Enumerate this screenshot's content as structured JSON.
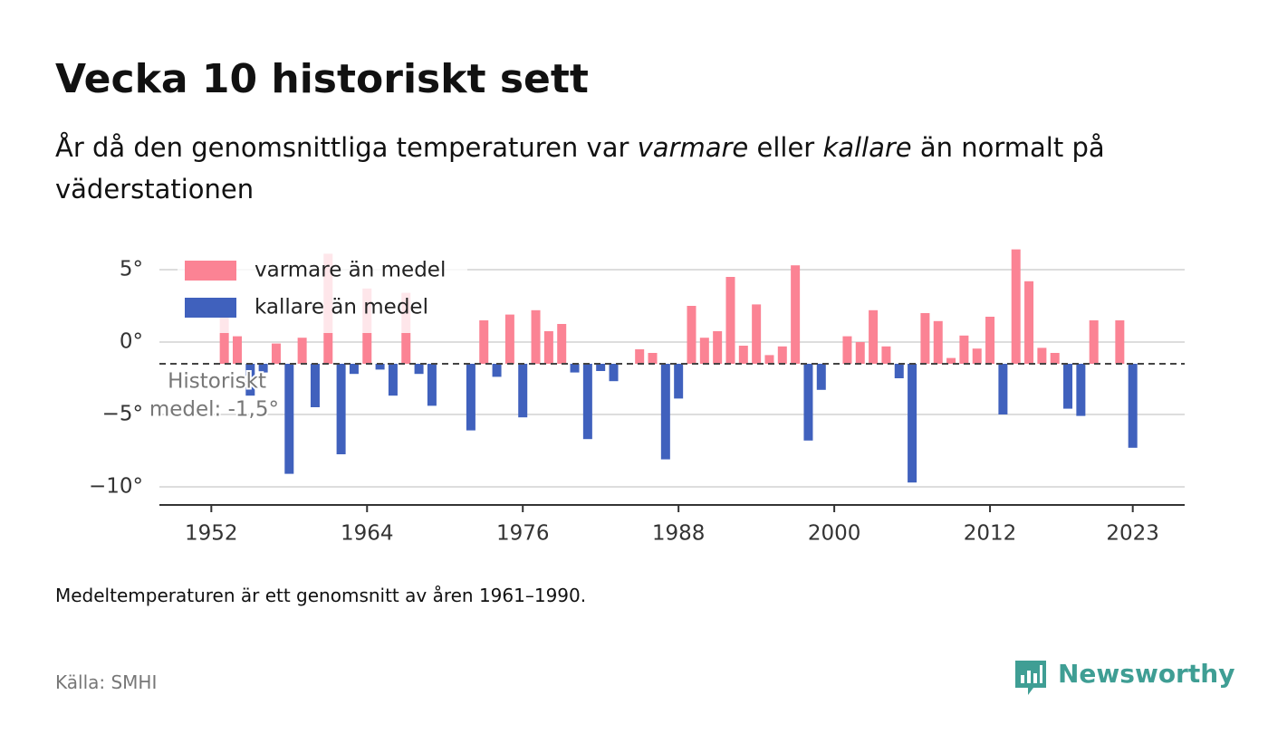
{
  "chart_data": {
    "type": "bar",
    "title": "Vecka 10 historiskt sett",
    "subtitle": [
      "År då den genomsnittliga temperaturen var ",
      "varmare",
      " eller ",
      "kallare",
      " än normalt på väderstationen"
    ],
    "note": "Medeltemperaturen är ett genomsnitt av åren 1961–1990.",
    "source": "Källa: SMHI",
    "brand": "Newsworthy",
    "mean": -1.5,
    "annotation": [
      "Historiskt",
      "medel: -1,5°"
    ],
    "x": [
      1953,
      1954,
      1955,
      1956,
      1957,
      1958,
      1959,
      1960,
      1961,
      1962,
      1963,
      1964,
      1965,
      1966,
      1967,
      1968,
      1969,
      1972,
      1973,
      1974,
      1975,
      1976,
      1977,
      1978,
      1979,
      1980,
      1981,
      1982,
      1983,
      1985,
      1986,
      1987,
      1988,
      1989,
      1990,
      1991,
      1992,
      1993,
      1994,
      1995,
      1996,
      1997,
      1998,
      1999,
      2001,
      2002,
      2003,
      2004,
      2005,
      2006,
      2007,
      2008,
      2009,
      2010,
      2011,
      2012,
      2013,
      2014,
      2015,
      2016,
      2017,
      2018,
      2019,
      2020,
      2022,
      2023
    ],
    "series": [
      {
        "name": "varmare än medel",
        "color": "#fb8394",
        "values": [
          1.7,
          0.4,
          null,
          null,
          -0.1,
          null,
          0.3,
          null,
          6.1,
          null,
          null,
          3.7,
          null,
          null,
          3.4,
          null,
          null,
          null,
          1.5,
          null,
          1.9,
          null,
          2.2,
          0.75,
          1.25,
          null,
          null,
          null,
          null,
          -0.5,
          -0.75,
          null,
          null,
          2.5,
          0.3,
          0.75,
          4.5,
          -0.25,
          2.6,
          -0.9,
          -0.3,
          5.3,
          null,
          null,
          0.4,
          0,
          2.2,
          -0.3,
          null,
          null,
          2,
          1.45,
          -1.1,
          0.45,
          -0.45,
          1.75,
          null,
          6.4,
          4.2,
          -0.4,
          -0.75,
          null,
          null,
          1.5,
          1.5,
          null
        ]
      },
      {
        "name": "kallare än medel",
        "color": "#4061bd",
        "values": [
          null,
          null,
          -3.7,
          -2.1,
          null,
          -9.1,
          null,
          -4.5,
          null,
          -7.75,
          -2.2,
          null,
          -1.9,
          -3.7,
          null,
          -2.2,
          -4.4,
          -6.1,
          null,
          -2.4,
          null,
          -5.2,
          null,
          null,
          null,
          -2.1,
          -6.7,
          -2,
          -2.7,
          null,
          null,
          -8.1,
          -3.9,
          null,
          null,
          null,
          null,
          null,
          null,
          null,
          null,
          null,
          -6.8,
          -3.3,
          null,
          null,
          null,
          null,
          -2.5,
          -9.7,
          null,
          null,
          null,
          null,
          null,
          null,
          -5,
          null,
          null,
          null,
          null,
          -4.6,
          -5.1,
          null,
          null,
          -7.3
        ]
      }
    ],
    "xlim": [
      1948,
      2027
    ],
    "xticks": [
      1952,
      1964,
      1976,
      1988,
      2000,
      2012,
      2023
    ],
    "ylim": [
      -11.25,
      7
    ],
    "yticks": [
      {
        "value": 5,
        "label": "5°"
      },
      {
        "value": 0,
        "label": "0°"
      },
      {
        "value": -5,
        "label": "−5°"
      },
      {
        "value": -10,
        "label": "−10°"
      }
    ],
    "grid": true,
    "legend": "upper left"
  }
}
